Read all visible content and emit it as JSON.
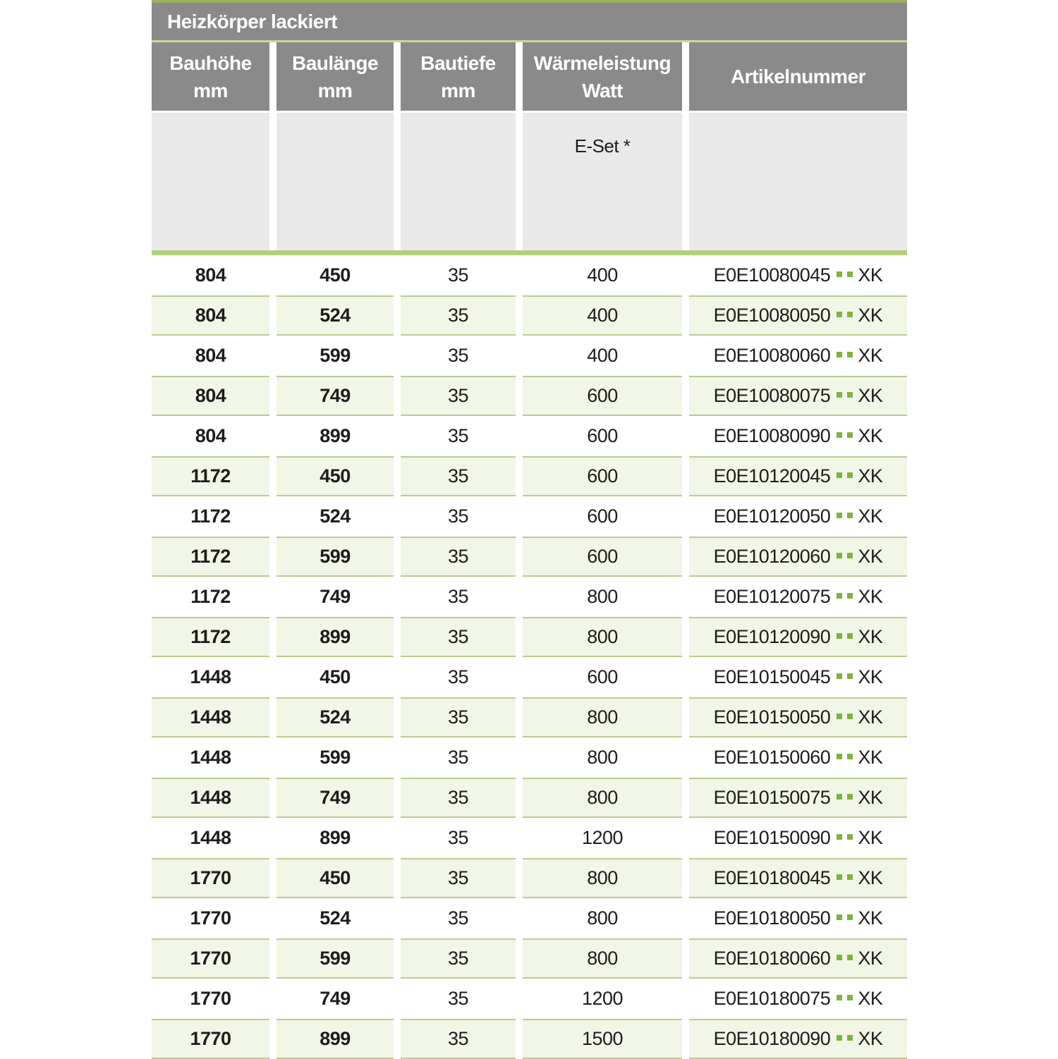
{
  "table": {
    "title": "Heizkörper lackiert",
    "columns": [
      {
        "label": "Bauhöhe",
        "unit": "mm"
      },
      {
        "label": "Baulänge",
        "unit": "mm"
      },
      {
        "label": "Bautiefe",
        "unit": "mm"
      },
      {
        "label": "Wärmeleistung",
        "unit": "Watt"
      },
      {
        "label": "Artikelnummer",
        "unit": ""
      }
    ],
    "subheader": {
      "eset_label": "E-Set *"
    },
    "rows": [
      {
        "bauhoehe": "804",
        "baulaenge": "450",
        "bautiefe": "35",
        "watt": "400",
        "artikel_prefix": "E0E10080045",
        "artikel_suffix": "XK"
      },
      {
        "bauhoehe": "804",
        "baulaenge": "524",
        "bautiefe": "35",
        "watt": "400",
        "artikel_prefix": "E0E10080050",
        "artikel_suffix": "XK"
      },
      {
        "bauhoehe": "804",
        "baulaenge": "599",
        "bautiefe": "35",
        "watt": "400",
        "artikel_prefix": "E0E10080060",
        "artikel_suffix": "XK"
      },
      {
        "bauhoehe": "804",
        "baulaenge": "749",
        "bautiefe": "35",
        "watt": "600",
        "artikel_prefix": "E0E10080075",
        "artikel_suffix": "XK"
      },
      {
        "bauhoehe": "804",
        "baulaenge": "899",
        "bautiefe": "35",
        "watt": "600",
        "artikel_prefix": "E0E10080090",
        "artikel_suffix": "XK"
      },
      {
        "bauhoehe": "1172",
        "baulaenge": "450",
        "bautiefe": "35",
        "watt": "600",
        "artikel_prefix": "E0E10120045",
        "artikel_suffix": "XK"
      },
      {
        "bauhoehe": "1172",
        "baulaenge": "524",
        "bautiefe": "35",
        "watt": "600",
        "artikel_prefix": "E0E10120050",
        "artikel_suffix": "XK"
      },
      {
        "bauhoehe": "1172",
        "baulaenge": "599",
        "bautiefe": "35",
        "watt": "600",
        "artikel_prefix": "E0E10120060",
        "artikel_suffix": "XK"
      },
      {
        "bauhoehe": "1172",
        "baulaenge": "749",
        "bautiefe": "35",
        "watt": "800",
        "artikel_prefix": "E0E10120075",
        "artikel_suffix": "XK"
      },
      {
        "bauhoehe": "1172",
        "baulaenge": "899",
        "bautiefe": "35",
        "watt": "800",
        "artikel_prefix": "E0E10120090",
        "artikel_suffix": "XK"
      },
      {
        "bauhoehe": "1448",
        "baulaenge": "450",
        "bautiefe": "35",
        "watt": "600",
        "artikel_prefix": "E0E10150045",
        "artikel_suffix": "XK"
      },
      {
        "bauhoehe": "1448",
        "baulaenge": "524",
        "bautiefe": "35",
        "watt": "800",
        "artikel_prefix": "E0E10150050",
        "artikel_suffix": "XK"
      },
      {
        "bauhoehe": "1448",
        "baulaenge": "599",
        "bautiefe": "35",
        "watt": "800",
        "artikel_prefix": "E0E10150060",
        "artikel_suffix": "XK"
      },
      {
        "bauhoehe": "1448",
        "baulaenge": "749",
        "bautiefe": "35",
        "watt": "800",
        "artikel_prefix": "E0E10150075",
        "artikel_suffix": "XK"
      },
      {
        "bauhoehe": "1448",
        "baulaenge": "899",
        "bautiefe": "35",
        "watt": "1200",
        "artikel_prefix": "E0E10150090",
        "artikel_suffix": "XK"
      },
      {
        "bauhoehe": "1770",
        "baulaenge": "450",
        "bautiefe": "35",
        "watt": "800",
        "artikel_prefix": "E0E10180045",
        "artikel_suffix": "XK"
      },
      {
        "bauhoehe": "1770",
        "baulaenge": "524",
        "bautiefe": "35",
        "watt": "800",
        "artikel_prefix": "E0E10180050",
        "artikel_suffix": "XK"
      },
      {
        "bauhoehe": "1770",
        "baulaenge": "599",
        "bautiefe": "35",
        "watt": "800",
        "artikel_prefix": "E0E10180060",
        "artikel_suffix": "XK"
      },
      {
        "bauhoehe": "1770",
        "baulaenge": "749",
        "bautiefe": "35",
        "watt": "1200",
        "artikel_prefix": "E0E10180075",
        "artikel_suffix": "XK"
      },
      {
        "bauhoehe": "1770",
        "baulaenge": "899",
        "bautiefe": "35",
        "watt": "1500",
        "artikel_prefix": "E0E10180090",
        "artikel_suffix": "XK"
      }
    ]
  },
  "colors": {
    "header_gray": "#8a8a8a",
    "subheader_gray": "#e9e9e9",
    "accent_green_top": "#9bb15d",
    "accent_green_separator": "#b2d07c",
    "row_border_green": "#b8cd90",
    "row_bg_green": "#f1f6e7",
    "dot_green": "#7cb440",
    "text_dark": "#1d1d1b"
  }
}
